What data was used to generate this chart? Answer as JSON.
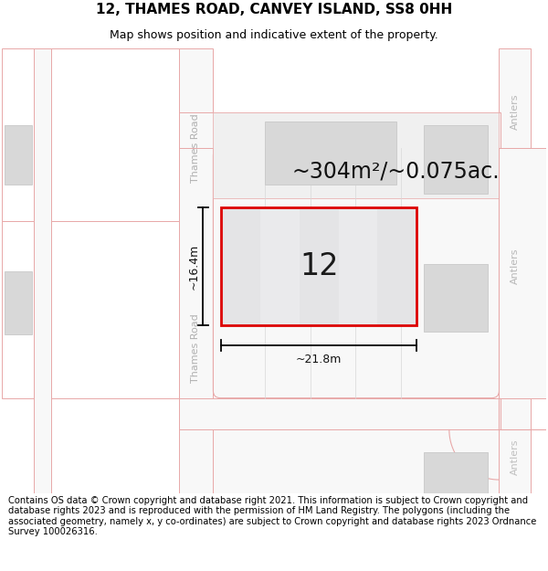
{
  "title": "12, THAMES ROAD, CANVEY ISLAND, SS8 0HH",
  "subtitle": "Map shows position and indicative extent of the property.",
  "disclaimer": "Contains OS data © Crown copyright and database right 2021. This information is subject to Crown copyright and database rights 2023 and is reproduced with the permission of HM Land Registry. The polygons (including the associated geometry, namely x, y co-ordinates) are subject to Crown copyright and database rights 2023 Ordnance Survey 100026316.",
  "area_text": "~304m²/~0.075ac.",
  "width_label": "~21.8m",
  "height_label": "~16.4m",
  "house_number": "12",
  "road_label_upper": "Thames Road",
  "road_label_lower": "Thames Road",
  "antlers_upper": "Antlers",
  "antlers_mid": "Antlers",
  "antlers_lower": "Antlers",
  "bg_color": "#ffffff",
  "map_bg": "#ffffff",
  "road_outline": "#e8a8a8",
  "building_fill": "#d8d8d8",
  "building_stroke": "#c8c8c8",
  "plot_fill": "#e8e8ea",
  "plot_stripe": "#d4d4d6",
  "plot_outline": "#dd0000",
  "title_fontsize": 11,
  "subtitle_fontsize": 9,
  "disclaimer_fontsize": 7.2,
  "area_fontsize": 17,
  "house_num_fontsize": 24,
  "dim_fontsize": 9,
  "road_label_fontsize": 8,
  "antlers_fontsize": 8
}
